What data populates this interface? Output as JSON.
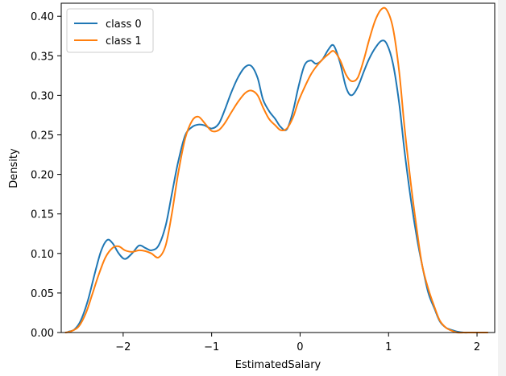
{
  "chart_data": {
    "type": "line",
    "xlabel": "EstimatedSalary",
    "ylabel": "Density",
    "xlim": [
      -2.7,
      2.2
    ],
    "ylim": [
      0.0,
      0.4165
    ],
    "xticks": [
      -2,
      -1,
      0,
      1,
      2
    ],
    "xtick_labels": [
      "−2",
      "−1",
      "0",
      "1",
      "2"
    ],
    "yticks": [
      0.0,
      0.05,
      0.1,
      0.15,
      0.2,
      0.25,
      0.3,
      0.35,
      0.4
    ],
    "ytick_labels": [
      "0.00",
      "0.05",
      "0.10",
      "0.15",
      "0.20",
      "0.25",
      "0.30",
      "0.35",
      "0.40"
    ],
    "grid": false,
    "legend_position": "top-left",
    "series": [
      {
        "name": "class 0",
        "color": "#1f77b4",
        "x": [
          -2.62,
          -2.55,
          -2.48,
          -2.4,
          -2.32,
          -2.25,
          -2.18,
          -2.12,
          -2.05,
          -1.98,
          -1.9,
          -1.82,
          -1.75,
          -1.68,
          -1.6,
          -1.52,
          -1.45,
          -1.38,
          -1.3,
          -1.22,
          -1.15,
          -1.08,
          -1.0,
          -0.92,
          -0.85,
          -0.78,
          -0.7,
          -0.62,
          -0.55,
          -0.48,
          -0.42,
          -0.35,
          -0.28,
          -0.22,
          -0.15,
          -0.08,
          -0.02,
          0.05,
          0.12,
          0.18,
          0.25,
          0.32,
          0.38,
          0.45,
          0.52,
          0.58,
          0.65,
          0.72,
          0.78,
          0.85,
          0.92,
          0.98,
          1.05,
          1.12,
          1.18,
          1.25,
          1.32,
          1.38,
          1.45,
          1.52,
          1.58,
          1.65,
          1.72,
          1.78,
          1.85,
          1.92,
          1.98,
          2.05
        ],
        "y": [
          0.001,
          0.004,
          0.015,
          0.04,
          0.075,
          0.103,
          0.117,
          0.113,
          0.1,
          0.093,
          0.1,
          0.11,
          0.107,
          0.104,
          0.11,
          0.135,
          0.175,
          0.215,
          0.249,
          0.26,
          0.263,
          0.262,
          0.258,
          0.264,
          0.282,
          0.303,
          0.323,
          0.336,
          0.337,
          0.322,
          0.295,
          0.28,
          0.27,
          0.26,
          0.257,
          0.28,
          0.31,
          0.338,
          0.344,
          0.34,
          0.345,
          0.358,
          0.363,
          0.342,
          0.31,
          0.3,
          0.31,
          0.33,
          0.346,
          0.36,
          0.369,
          0.365,
          0.34,
          0.29,
          0.23,
          0.17,
          0.12,
          0.085,
          0.05,
          0.03,
          0.014,
          0.006,
          0.003,
          0.001,
          0.0,
          0.0,
          0.0,
          0.0
        ]
      },
      {
        "name": "class 1",
        "color": "#ff7f0e",
        "x": [
          -2.65,
          -2.58,
          -2.5,
          -2.42,
          -2.35,
          -2.28,
          -2.2,
          -2.12,
          -2.05,
          -1.98,
          -1.9,
          -1.82,
          -1.75,
          -1.68,
          -1.6,
          -1.52,
          -1.45,
          -1.38,
          -1.3,
          -1.22,
          -1.15,
          -1.08,
          -1.0,
          -0.92,
          -0.85,
          -0.78,
          -0.7,
          -0.62,
          -0.55,
          -0.48,
          -0.42,
          -0.35,
          -0.28,
          -0.22,
          -0.15,
          -0.08,
          -0.02,
          0.05,
          0.12,
          0.18,
          0.25,
          0.32,
          0.38,
          0.45,
          0.52,
          0.58,
          0.65,
          0.72,
          0.78,
          0.85,
          0.92,
          0.98,
          1.05,
          1.12,
          1.18,
          1.25,
          1.32,
          1.38,
          1.45,
          1.52,
          1.58,
          1.65,
          1.72,
          1.78,
          1.85,
          1.92,
          1.98,
          2.05,
          2.12
        ],
        "y": [
          0.0,
          0.002,
          0.008,
          0.025,
          0.048,
          0.072,
          0.095,
          0.107,
          0.109,
          0.104,
          0.102,
          0.104,
          0.103,
          0.1,
          0.095,
          0.11,
          0.15,
          0.2,
          0.245,
          0.268,
          0.273,
          0.265,
          0.255,
          0.256,
          0.265,
          0.278,
          0.292,
          0.303,
          0.306,
          0.3,
          0.285,
          0.27,
          0.262,
          0.256,
          0.258,
          0.272,
          0.292,
          0.31,
          0.326,
          0.336,
          0.345,
          0.352,
          0.356,
          0.345,
          0.326,
          0.318,
          0.322,
          0.345,
          0.37,
          0.395,
          0.409,
          0.408,
          0.385,
          0.33,
          0.26,
          0.19,
          0.13,
          0.085,
          0.055,
          0.032,
          0.015,
          0.006,
          0.002,
          0.0,
          0.0,
          0.0,
          0.0,
          0.0,
          0.0
        ]
      }
    ]
  }
}
